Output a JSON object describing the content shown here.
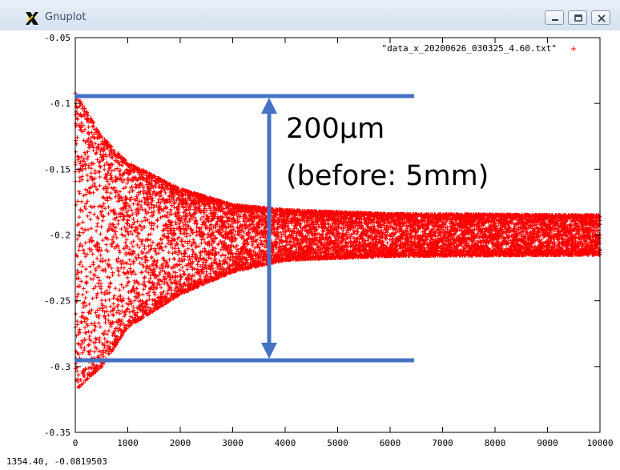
{
  "window": {
    "title": "Gnuplot",
    "buttons": [
      "minimize-icon",
      "maximize-icon",
      "close-icon"
    ]
  },
  "statusbar": {
    "coords": "1354.40, -0.0819503"
  },
  "annotation": {
    "line1": "200μm",
    "line2": "(before: 5mm)",
    "color": "#4472c4"
  },
  "chart_data": {
    "type": "scatter",
    "marker": "+",
    "color": "#ff0000",
    "legend": {
      "label": "\"data_x_20200626_030325_4.60.txt\"",
      "position": "top-right"
    },
    "xlim": [
      0,
      10000
    ],
    "ylim": [
      -0.35,
      -0.05
    ],
    "x_ticks": [
      0,
      1000,
      2000,
      3000,
      4000,
      5000,
      6000,
      7000,
      8000,
      9000,
      10000
    ],
    "x_tick_labels": [
      "0",
      "1000",
      "2000",
      "3000",
      "4000",
      "5000",
      "6000",
      "7000",
      "8000",
      "9000",
      "10000"
    ],
    "y_ticks": [
      -0.35,
      -0.3,
      -0.25,
      -0.2,
      -0.15,
      -0.1,
      -0.05
    ],
    "y_tick_labels": [
      "-0.35",
      "-0.3",
      "-0.25",
      "-0.2",
      "-0.15",
      "-0.1",
      "-0.05"
    ],
    "envelope": [
      {
        "x": 0,
        "center": -0.205,
        "upper": -0.092,
        "lower": -0.318
      },
      {
        "x": 500,
        "center": -0.202,
        "upper": -0.125,
        "lower": -0.3
      },
      {
        "x": 1000,
        "center": -0.201,
        "upper": -0.145,
        "lower": -0.27
      },
      {
        "x": 2000,
        "center": -0.2,
        "upper": -0.165,
        "lower": -0.245
      },
      {
        "x": 3000,
        "center": -0.2,
        "upper": -0.177,
        "lower": -0.228
      },
      {
        "x": 4000,
        "center": -0.2,
        "upper": -0.181,
        "lower": -0.219
      },
      {
        "x": 6000,
        "center": -0.2,
        "upper": -0.184,
        "lower": -0.216
      },
      {
        "x": 10000,
        "center": -0.2,
        "upper": -0.185,
        "lower": -0.215
      }
    ],
    "point_count": 10000
  }
}
